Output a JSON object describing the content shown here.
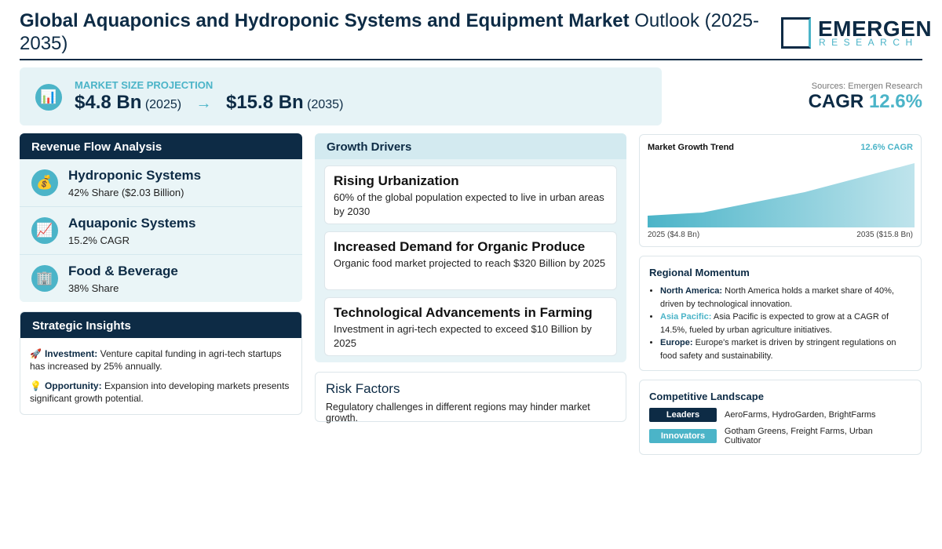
{
  "header": {
    "title_bold": "Global Aquaponics and Hydroponic Systems and Equipment Market",
    "title_rest": "Outlook (2025-2035)",
    "logo_top": "EMERGEN",
    "logo_bottom": "RESEARCH"
  },
  "projection": {
    "icon": "📊",
    "label": "MARKET SIZE PROJECTION",
    "start_value": "$4.8 Bn",
    "start_year": "(2025)",
    "arrow": "→",
    "end_value": "$15.8 Bn",
    "end_year": "(2035)"
  },
  "summary": {
    "source": "Sources: Emergen Research",
    "cagr_label": "CAGR",
    "cagr_value": "12.6%"
  },
  "revenue_flow": {
    "title": "Revenue Flow Analysis",
    "items": [
      {
        "icon": "💰",
        "name": "Hydroponic Systems",
        "detail": "42% Share ($2.03 Billion)"
      },
      {
        "icon": "📈",
        "name": "Aquaponic Systems",
        "detail": "15.2% CAGR"
      },
      {
        "icon": "🏢",
        "name": "Food & Beverage",
        "detail": "38% Share"
      }
    ]
  },
  "strategic_insights": {
    "title": "Strategic Insights",
    "items": [
      {
        "icon": "🚀",
        "label": "Investment:",
        "text": "Venture capital funding in agri-tech startups has increased by 25% annually."
      },
      {
        "icon": "💡",
        "label": "Opportunity:",
        "text": "Expansion into developing markets presents significant growth potential."
      }
    ]
  },
  "growth_drivers": {
    "title": "Growth Drivers",
    "items": [
      {
        "name": "Rising Urbanization",
        "detail": "60% of the global population expected to live in urban areas by 2030"
      },
      {
        "name": "Increased Demand for Organic Produce",
        "detail": "Organic food market projected to reach $320 Billion by 2025"
      },
      {
        "name": "Technological Advancements in Farming",
        "detail": "Investment in agri-tech expected to exceed $10 Billion by 2025"
      }
    ]
  },
  "risk_factors": {
    "title": "Risk Factors",
    "text": "Regulatory challenges in different regions may hinder market growth."
  },
  "growth_trend": {
    "title": "Market Growth Trend",
    "cagr": "12.6% CAGR",
    "start_label": "2025 ($4.8 Bn)",
    "end_label": "2035 ($15.8 Bn)"
  },
  "regional_momentum": {
    "title": "Regional Momentum",
    "items": [
      {
        "region": "North America:",
        "text": "North America holds a market share of 40%, driven by technological innovation."
      },
      {
        "region": "Asia Pacific:",
        "text": "Asia Pacific is expected to grow at a CAGR of 14.5%, fueled by urban agriculture initiatives."
      },
      {
        "region": "Europe:",
        "text": "Europe's market is driven by stringent regulations on food safety and sustainability."
      }
    ]
  },
  "competitive_landscape": {
    "title": "Competitive Landscape",
    "rows": [
      {
        "label": "Leaders",
        "companies": "AeroFarms, HydroGarden, BrightFarms"
      },
      {
        "label": "Innovators",
        "companies": "Gotham Greens, Freight Farms, Urban Cultivator"
      }
    ]
  }
}
